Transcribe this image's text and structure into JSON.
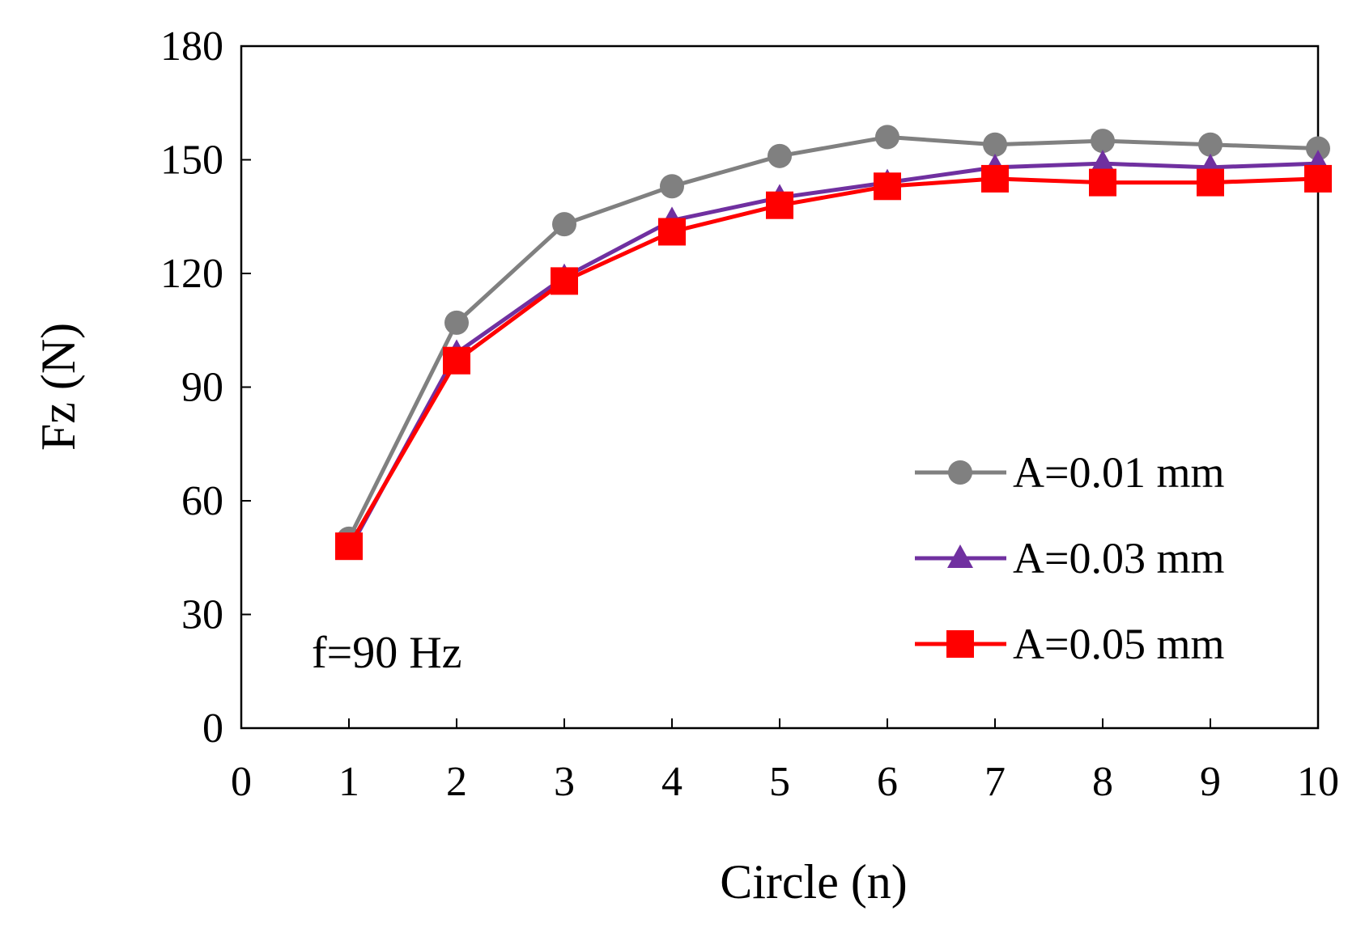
{
  "chart_data": {
    "type": "line",
    "title": "",
    "xlabel": "Circle (n)",
    "ylabel": "Fz (N)",
    "xlim": [
      0,
      10
    ],
    "ylim": [
      0,
      180
    ],
    "xticks": [
      "0",
      "1",
      "2",
      "3",
      "4",
      "5",
      "6",
      "7",
      "8",
      "9",
      "10"
    ],
    "yticks": [
      "0",
      "30",
      "60",
      "90",
      "120",
      "150",
      "180"
    ],
    "grid": false,
    "legend_position": "right",
    "annotation": "f=90 Hz",
    "x": [
      1,
      2,
      3,
      4,
      5,
      6,
      7,
      8,
      9,
      10
    ],
    "series": [
      {
        "name": "A=0.01 mm",
        "color": "#808080",
        "marker": "circle",
        "values": [
          50,
          107,
          133,
          143,
          151,
          156,
          154,
          155,
          154,
          153
        ]
      },
      {
        "name": "A=0.03 mm",
        "color": "#7030A0",
        "marker": "triangle",
        "values": [
          47,
          99,
          119,
          134,
          140,
          144,
          148,
          149,
          148,
          149
        ]
      },
      {
        "name": "A=0.05 mm",
        "color": "#FF0000",
        "marker": "square",
        "values": [
          48,
          97,
          118,
          131,
          138,
          143,
          145,
          144,
          144,
          145
        ]
      }
    ]
  }
}
